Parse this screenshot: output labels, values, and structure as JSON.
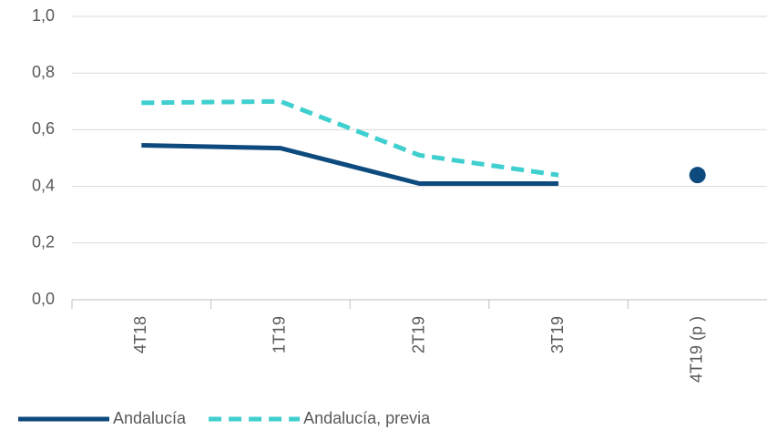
{
  "chart_data": {
    "type": "line",
    "categories": [
      "4T18",
      "1T19",
      "2T19",
      "3T19",
      "4T19 (p )"
    ],
    "series": [
      {
        "name": "Andalucía",
        "color": "#0d4a7e",
        "dash": false,
        "values": [
          0.545,
          0.535,
          0.41,
          0.41,
          null
        ]
      },
      {
        "name": "Andalucía, previa",
        "color": "#3fcfcf",
        "dash": true,
        "values": [
          0.695,
          0.7,
          0.51,
          0.44,
          null
        ]
      },
      {
        "color": "#0d4a7e",
        "marker": "dot",
        "values": [
          null,
          null,
          null,
          null,
          0.44
        ]
      }
    ],
    "ylim": [
      0,
      1
    ],
    "yticks": [
      {
        "value": 0,
        "label": "0,0"
      },
      {
        "value": 0.2,
        "label": "0,2"
      },
      {
        "value": 0.4,
        "label": "0,4"
      },
      {
        "value": 0.6,
        "label": "0,6"
      },
      {
        "value": 0.8,
        "label": "0,8"
      },
      {
        "value": 1,
        "label": "1,0"
      }
    ],
    "grid": true,
    "legend": "bottom"
  }
}
